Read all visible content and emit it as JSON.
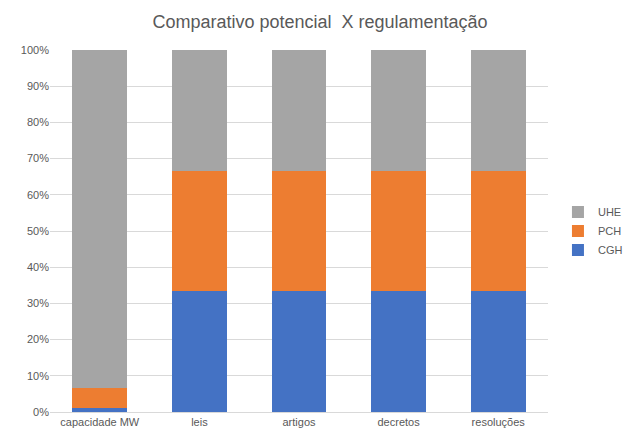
{
  "chart_data": {
    "type": "bar",
    "title": "Comparativo potencial  X regulamentação",
    "categories": [
      "capacidade MW",
      "leis",
      "artigos",
      "decretos",
      "resoluções"
    ],
    "series": [
      {
        "name": "CGH",
        "color": "#4472c4",
        "values": [
          1,
          33.3,
          33.3,
          33.3,
          33.3
        ]
      },
      {
        "name": "PCH",
        "color": "#ed7d31",
        "values": [
          5.5,
          33.3,
          33.3,
          33.3,
          33.3
        ]
      },
      {
        "name": "UHE",
        "color": "#a5a5a5",
        "values": [
          93.5,
          33.4,
          33.4,
          33.4,
          33.4
        ]
      }
    ],
    "stacked": true,
    "ylim": [
      0,
      100
    ],
    "yticks": [
      {
        "value": 0,
        "label": "0%"
      },
      {
        "value": 10,
        "label": "10%"
      },
      {
        "value": 20,
        "label": "20%"
      },
      {
        "value": 30,
        "label": "30%"
      },
      {
        "value": 40,
        "label": "40%"
      },
      {
        "value": 50,
        "label": "50%"
      },
      {
        "value": 60,
        "label": "60%"
      },
      {
        "value": 70,
        "label": "70%"
      },
      {
        "value": 80,
        "label": "80%"
      },
      {
        "value": 90,
        "label": "90%"
      },
      {
        "value": 100,
        "label": "100%"
      }
    ],
    "grid": true,
    "legend": "right"
  }
}
